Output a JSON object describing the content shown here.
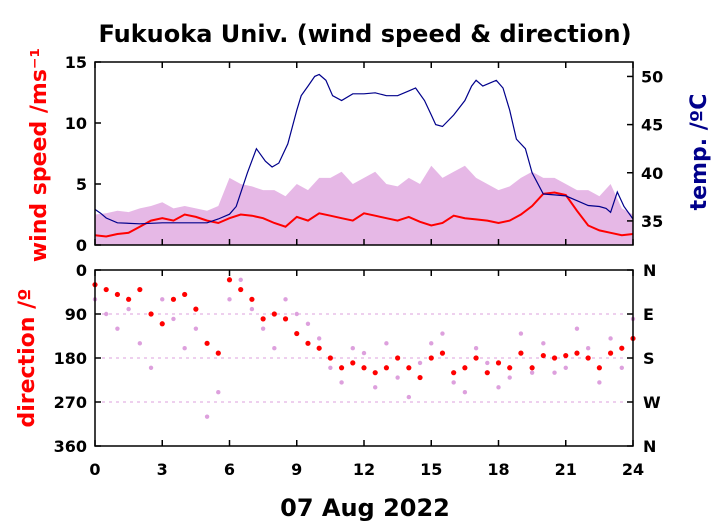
{
  "chart_data": [
    {
      "type": "line",
      "title": "Fukuoka Univ. (wind speed & direction)",
      "xlabel": "07 Aug 2022",
      "xlim": [
        0,
        24
      ],
      "x_ticks": [
        "0",
        "3",
        "6",
        "9",
        "12",
        "15",
        "18",
        "21",
        "24"
      ],
      "ylabel_left": "wind speed /ms⁻¹",
      "ylim_left": [
        0,
        15
      ],
      "y_ticks_left": [
        "0",
        "5",
        "10",
        "15"
      ],
      "ylabel_right": "temp. /ºC",
      "ylim_right": [
        32.5,
        51.5
      ],
      "y_ticks_right": [
        "35",
        "40",
        "45",
        "50"
      ],
      "colors": {
        "wind_mean": "#ff0000",
        "gust": "#dda0dd",
        "temperature": "#00008b"
      },
      "series": [
        {
          "name": "wind speed (mean)",
          "axis": "left",
          "x": [
            0,
            0.5,
            1,
            1.5,
            2,
            2.5,
            3,
            3.5,
            4,
            4.5,
            5,
            5.5,
            6,
            6.5,
            7,
            7.5,
            8,
            8.5,
            9,
            9.5,
            10,
            10.5,
            11,
            11.5,
            12,
            12.5,
            13,
            13.5,
            14,
            14.5,
            15,
            15.5,
            16,
            16.5,
            17,
            17.5,
            18,
            18.5,
            19,
            19.5,
            20,
            20.5,
            21,
            21.5,
            22,
            22.5,
            23,
            23.5,
            24
          ],
          "y": [
            0.8,
            0.7,
            0.9,
            1.0,
            1.5,
            2.0,
            2.2,
            2.0,
            2.5,
            2.3,
            2.0,
            1.8,
            2.2,
            2.5,
            2.4,
            2.2,
            1.8,
            1.5,
            2.3,
            2.0,
            2.6,
            2.4,
            2.2,
            2.0,
            2.6,
            2.4,
            2.2,
            2.0,
            2.3,
            1.9,
            1.6,
            1.8,
            2.4,
            2.2,
            2.1,
            2.0,
            1.8,
            2.0,
            2.5,
            3.2,
            4.2,
            4.3,
            4.1,
            2.8,
            1.6,
            1.2,
            1.0,
            0.8,
            0.9
          ]
        },
        {
          "name": "wind speed (gust)",
          "axis": "left",
          "x": [
            0,
            0.5,
            1,
            1.5,
            2,
            2.5,
            3,
            3.5,
            4,
            4.5,
            5,
            5.5,
            6,
            6.5,
            7,
            7.5,
            8,
            8.5,
            9,
            9.5,
            10,
            10.5,
            11,
            11.5,
            12,
            12.5,
            13,
            13.5,
            14,
            14.5,
            15,
            15.5,
            16,
            16.5,
            17,
            17.5,
            18,
            18.5,
            19,
            19.5,
            20,
            20.5,
            21,
            21.5,
            22,
            22.5,
            23,
            23.5,
            24
          ],
          "y": [
            2.5,
            2.6,
            2.8,
            2.7,
            3.0,
            3.2,
            3.5,
            3.0,
            3.2,
            3.0,
            2.8,
            3.2,
            5.5,
            5.0,
            4.8,
            4.5,
            4.5,
            4.0,
            5.0,
            4.5,
            5.5,
            5.5,
            6.0,
            5.0,
            5.5,
            6.0,
            5.0,
            4.8,
            5.5,
            5.0,
            6.5,
            5.5,
            6.0,
            6.5,
            5.5,
            5.0,
            4.5,
            4.8,
            5.5,
            6.0,
            5.5,
            5.5,
            5.0,
            4.5,
            4.5,
            4.0,
            5.0,
            3.0,
            2.5
          ]
        },
        {
          "name": "temperature",
          "axis": "right",
          "x": [
            0,
            0.25,
            0.5,
            1,
            2,
            3,
            4,
            5,
            5.5,
            6,
            6.3,
            6.8,
            7.2,
            7.6,
            7.9,
            8.2,
            8.6,
            9,
            9.2,
            9.5,
            9.8,
            10,
            10.3,
            10.6,
            11,
            11.5,
            12,
            12.5,
            13,
            13.5,
            14,
            14.3,
            14.7,
            15,
            15.2,
            15.5,
            16,
            16.5,
            16.8,
            17,
            17.3,
            17.6,
            17.9,
            18.2,
            18.5,
            18.8,
            19.2,
            19.5,
            20,
            20.5,
            21,
            21.5,
            22,
            22.5,
            22.8,
            23,
            23.3,
            23.6,
            24
          ],
          "y": [
            36.2,
            35.8,
            35.3,
            34.8,
            34.7,
            34.8,
            34.8,
            34.8,
            35.2,
            35.7,
            36.5,
            40.0,
            42.5,
            41.2,
            40.6,
            41.0,
            43.0,
            46.5,
            48.0,
            49.0,
            50.0,
            50.2,
            49.6,
            48.0,
            47.5,
            48.2,
            48.2,
            48.3,
            48.0,
            48.0,
            48.5,
            48.8,
            47.5,
            46.0,
            45.0,
            44.8,
            46.0,
            47.5,
            49.0,
            49.6,
            49.0,
            49.3,
            49.6,
            48.8,
            46.5,
            43.5,
            42.5,
            40.0,
            37.8,
            37.7,
            37.6,
            37.1,
            36.6,
            36.5,
            36.3,
            35.9,
            38.0,
            36.5,
            35.2
          ]
        }
      ]
    },
    {
      "type": "scatter",
      "ylabel_left": "direction /º",
      "xlim": [
        0,
        24
      ],
      "ylim": [
        360,
        0
      ],
      "y_ticks_left": [
        "0",
        "90",
        "180",
        "270",
        "360"
      ],
      "y_ticks_right": [
        "N",
        "E",
        "S",
        "W",
        "N"
      ],
      "series": [
        {
          "name": "wind direction (mean)",
          "x": [
            0,
            0.5,
            1,
            1.5,
            2,
            2.5,
            3,
            3.5,
            4,
            4.5,
            5,
            5.5,
            6,
            6.5,
            7,
            7.5,
            8,
            8.5,
            9,
            9.5,
            10,
            10.5,
            11,
            11.5,
            12,
            12.5,
            13,
            13.5,
            14,
            14.5,
            15,
            15.5,
            16,
            16.5,
            17,
            17.5,
            18,
            18.5,
            19,
            19.5,
            20,
            20.5,
            21,
            21.5,
            22,
            22.5,
            23,
            23.5,
            24
          ],
          "y": [
            30,
            40,
            50,
            60,
            40,
            90,
            110,
            60,
            50,
            80,
            150,
            170,
            20,
            40,
            60,
            100,
            90,
            100,
            130,
            150,
            160,
            180,
            200,
            190,
            200,
            210,
            200,
            180,
            200,
            220,
            180,
            170,
            210,
            200,
            180,
            210,
            190,
            200,
            170,
            200,
            175,
            180,
            175,
            170,
            180,
            200,
            170,
            160,
            140
          ]
        },
        {
          "name": "wind direction (instantaneous)",
          "x": [
            0,
            0.5,
            1,
            1.5,
            2,
            2.5,
            3,
            3.5,
            4,
            4.5,
            5,
            5.5,
            6,
            6.5,
            7,
            7.5,
            8,
            8.5,
            9,
            9.5,
            10,
            10.5,
            11,
            11.5,
            12,
            12.5,
            13,
            13.5,
            14,
            14.5,
            15,
            15.5,
            16,
            16.5,
            17,
            17.5,
            18,
            18.5,
            19,
            19.5,
            20,
            20.5,
            21,
            21.5,
            22,
            22.5,
            23,
            23.5,
            24
          ],
          "y": [
            60,
            90,
            120,
            80,
            150,
            200,
            60,
            100,
            160,
            120,
            300,
            250,
            60,
            20,
            80,
            120,
            160,
            60,
            90,
            110,
            140,
            200,
            230,
            160,
            170,
            240,
            150,
            220,
            260,
            190,
            150,
            130,
            230,
            250,
            160,
            190,
            240,
            220,
            130,
            210,
            150,
            210,
            200,
            120,
            160,
            230,
            140,
            200,
            100
          ]
        }
      ]
    }
  ]
}
